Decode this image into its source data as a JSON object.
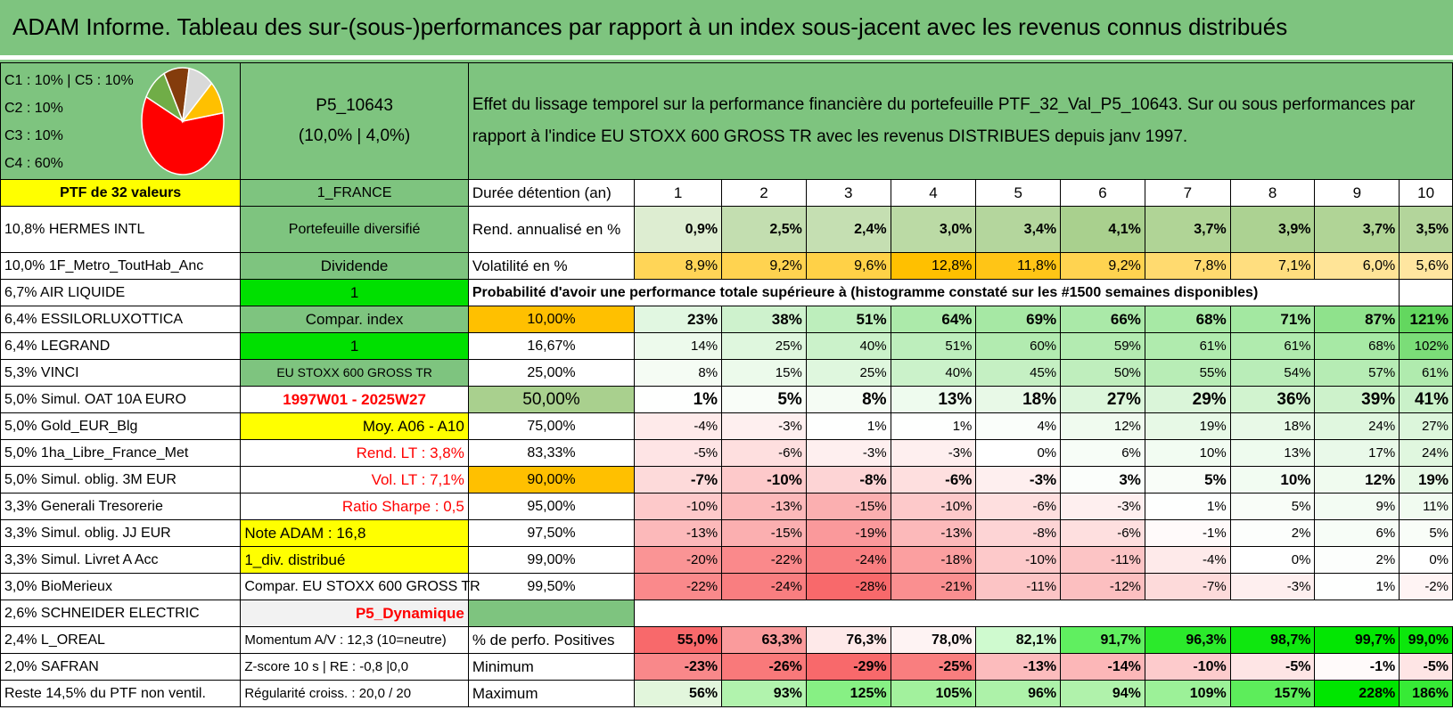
{
  "title": "ADAM Informe. Tableau des sur-(sous-)performances par rapport à un index sous-jacent avec les revenus connus distribués",
  "pie": {
    "legend": [
      "C1 : 10% | C5 : 10%",
      "C2 : 10%",
      "C3 : 10%",
      "C4 : 60%"
    ],
    "slices": [
      {
        "label": "C4",
        "value": 60,
        "color": "#ff0000"
      },
      {
        "label": "C3",
        "value": 10,
        "color": "#70ad47"
      },
      {
        "label": "C2",
        "value": 10,
        "color": "#843c0c"
      },
      {
        "label": "C1",
        "value": 10,
        "color": "#d9d9d9"
      },
      {
        "label": "C5",
        "value": 10,
        "color": "#ffc000"
      }
    ]
  },
  "portfolio": {
    "id": "P5_10643",
    "params": "(10,0% | 4,0%)"
  },
  "description": "Effet du lissage temporel sur la performance financière du portefeuille PTF_32_Val_P5_10643. Sur ou sous performances par rapport à l'indice EU STOXX 600 GROSS TR avec les revenus DISTRIBUES depuis janv 1997.",
  "holdings_header": "PTF de 32 valeurs",
  "holdings": [
    "10,8% HERMES INTL",
    "10,0% 1F_Metro_ToutHab_Anc",
    "6,7% AIR LIQUIDE",
    "6,4% ESSILORLUXOTTICA",
    "6,4% LEGRAND",
    "5,3% VINCI",
    "5,0% Simul. OAT 10A EURO",
    "5,0% Gold_EUR_Blg",
    "5,0% 1ha_Libre_France_Met",
    "5,0% Simul. oblig. 3M EUR",
    "3,3% Generali Tresorerie",
    "3,3% Simul. oblig. JJ EUR",
    "3,3% Simul. Livret A Acc",
    "3,0% BioMerieux",
    "2,6% SCHNEIDER ELECTRIC",
    "2,4% L_OREAL",
    "2,0% SAFRAN",
    "Reste 14,5% du PTF non ventil."
  ],
  "info": [
    "1_FRANCE",
    "Portefeuille diversifié",
    "Dividende",
    "1",
    "Compar. index",
    "1",
    "EU STOXX 600 GROSS TR",
    "1997W01 - 2025W27",
    "Moy. A06 - A10",
    "Rend. LT : 3,8%",
    "Vol. LT : 7,1%",
    "Ratio Sharpe : 0,5",
    "Note ADAM : 16,8",
    "1_div. distribué",
    "Compar. EU STOXX 600 GROSS TR",
    "P5_Dynamique",
    "Momentum A/V : 12,3 (10=neutre)",
    "Z-score 10 s | RE : -0,8 |0,0",
    "Régularité croiss. : 20,0 / 20"
  ],
  "years_label": "Durée détention (an)",
  "years": [
    "1",
    "2",
    "3",
    "4",
    "5",
    "6",
    "7",
    "8",
    "9",
    "10"
  ],
  "rend_label": "Rend. annualisé en %",
  "rend": [
    "0,9%",
    "2,5%",
    "2,4%",
    "3,0%",
    "3,4%",
    "4,1%",
    "3,7%",
    "3,9%",
    "3,7%",
    "3,5%"
  ],
  "vol_label": "Volatilité en %",
  "vol": [
    "8,9%",
    "9,2%",
    "9,6%",
    "12,8%",
    "11,8%",
    "9,2%",
    "7,8%",
    "7,1%",
    "6,0%",
    "5,6%"
  ],
  "prob_title": "Probabilité d'avoir une performance totale supérieure à (histogramme constaté sur les #1500 semaines disponibles)",
  "prob_rows": [
    {
      "p": "10,00%",
      "v": [
        "23%",
        "38%",
        "51%",
        "64%",
        "69%",
        "66%",
        "68%",
        "71%",
        "87%",
        "121%"
      ]
    },
    {
      "p": "16,67%",
      "v": [
        "14%",
        "25%",
        "40%",
        "51%",
        "60%",
        "59%",
        "61%",
        "61%",
        "68%",
        "102%"
      ]
    },
    {
      "p": "25,00%",
      "v": [
        "8%",
        "15%",
        "25%",
        "40%",
        "45%",
        "50%",
        "55%",
        "54%",
        "57%",
        "61%"
      ]
    },
    {
      "p": "50,00%",
      "v": [
        "1%",
        "5%",
        "8%",
        "13%",
        "18%",
        "27%",
        "29%",
        "36%",
        "39%",
        "41%"
      ]
    },
    {
      "p": "75,00%",
      "v": [
        "-4%",
        "-3%",
        "1%",
        "1%",
        "4%",
        "12%",
        "19%",
        "18%",
        "24%",
        "27%"
      ]
    },
    {
      "p": "83,33%",
      "v": [
        "-5%",
        "-6%",
        "-3%",
        "-3%",
        "0%",
        "6%",
        "10%",
        "13%",
        "17%",
        "24%"
      ]
    },
    {
      "p": "90,00%",
      "v": [
        "-7%",
        "-10%",
        "-8%",
        "-6%",
        "-3%",
        "3%",
        "5%",
        "10%",
        "12%",
        "19%"
      ]
    },
    {
      "p": "95,00%",
      "v": [
        "-10%",
        "-13%",
        "-15%",
        "-10%",
        "-6%",
        "-3%",
        "1%",
        "5%",
        "9%",
        "11%"
      ]
    },
    {
      "p": "97,50%",
      "v": [
        "-13%",
        "-15%",
        "-19%",
        "-13%",
        "-8%",
        "-6%",
        "-1%",
        "2%",
        "6%",
        "5%"
      ]
    },
    {
      "p": "99,00%",
      "v": [
        "-20%",
        "-22%",
        "-24%",
        "-18%",
        "-10%",
        "-11%",
        "-4%",
        "0%",
        "2%",
        "0%"
      ]
    },
    {
      "p": "99,50%",
      "v": [
        "-22%",
        "-24%",
        "-28%",
        "-21%",
        "-11%",
        "-12%",
        "-7%",
        "-3%",
        "1%",
        "-2%"
      ]
    }
  ],
  "pos_label": "% de perfo. Positives",
  "pos": [
    "55,0%",
    "63,3%",
    "76,3%",
    "78,0%",
    "82,1%",
    "91,7%",
    "96,3%",
    "98,7%",
    "99,7%",
    "99,0%"
  ],
  "min_label": "Minimum",
  "min": [
    "-23%",
    "-26%",
    "-29%",
    "-25%",
    "-13%",
    "-14%",
    "-10%",
    "-5%",
    "-1%",
    "-5%"
  ],
  "max_label": "Maximum",
  "max": [
    "56%",
    "93%",
    "125%",
    "105%",
    "96%",
    "94%",
    "109%",
    "157%",
    "228%",
    "186%"
  ]
}
